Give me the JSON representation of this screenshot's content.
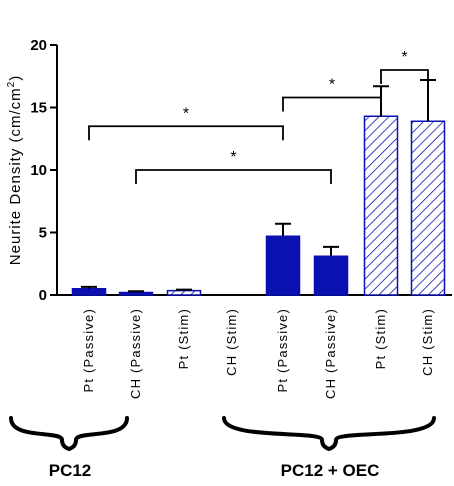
{
  "chart_data": {
    "type": "bar",
    "ylabel": "Neurite Density (cm/cm",
    "ylabel_superscript": "2",
    "ylabel_close": ")",
    "ylim": [
      0,
      20
    ],
    "yticks": [
      "0",
      "5",
      "10",
      "15",
      "20"
    ],
    "grid": false,
    "categories": [
      "Pt (Passive)",
      "CH (Passive)",
      "Pt (Stim)",
      "CH (Stim)",
      "Pt (Passive)",
      "CH (Passive)",
      "Pt (Stim)",
      "CH (Stim)"
    ],
    "values": [
      0.5,
      0.2,
      0.35,
      0.0,
      4.7,
      3.1,
      14.3,
      13.9
    ],
    "errors": [
      0.15,
      0.1,
      0.08,
      0.0,
      1.0,
      0.75,
      2.4,
      3.3
    ],
    "fill": [
      "solid",
      "solid",
      "hatched",
      "hatched",
      "solid",
      "solid",
      "hatched",
      "hatched"
    ],
    "groups": [
      {
        "label": "PC12",
        "categories": [
          0,
          1,
          2,
          3
        ]
      },
      {
        "label": "PC12 + OEC",
        "categories": [
          4,
          5,
          6,
          7
        ]
      }
    ],
    "significance": [
      {
        "from": 0,
        "to": 4,
        "value": 13.5,
        "label": "*"
      },
      {
        "from": 1,
        "to": 5,
        "value": 10.0,
        "label": "*"
      },
      {
        "from": 4,
        "to": 6,
        "value": 15.8,
        "label": "*"
      },
      {
        "from": 6,
        "to": 7,
        "value": 18.0,
        "label": "*"
      }
    ]
  },
  "colors": {
    "bar": "#0b11b0",
    "hatch": "#0b11b0",
    "axis": "#000000"
  }
}
